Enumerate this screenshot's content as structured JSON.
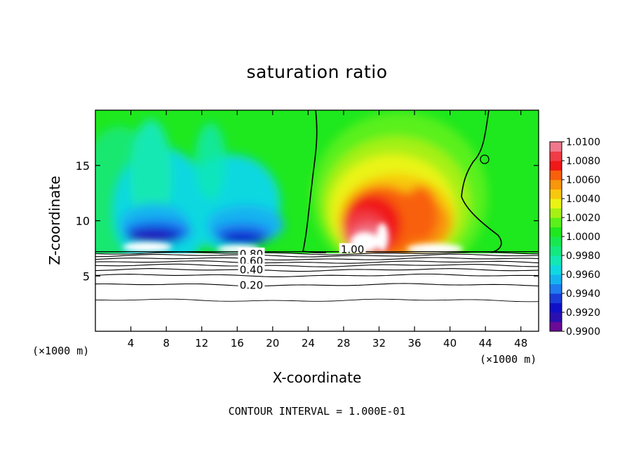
{
  "chart_data": {
    "type": "heatmap",
    "title": "saturation ratio",
    "xlabel": "X-coordinate",
    "ylabel": "Z-coordinate",
    "x_unit": "(×1000 m)",
    "footer": "CONTOUR INTERVAL = 1.000E-01",
    "xlim": [
      0,
      50
    ],
    "ylim": [
      0,
      20
    ],
    "x_ticks": [
      4,
      8,
      12,
      16,
      20,
      24,
      28,
      32,
      36,
      40,
      44,
      48
    ],
    "y_ticks": [
      5,
      10,
      15
    ],
    "x_tick_labels": [
      "4",
      "8",
      "12",
      "16",
      "20",
      "24",
      "28",
      "32",
      "36",
      "40",
      "44",
      "48"
    ],
    "y_tick_labels": [
      "5",
      "10",
      "15"
    ],
    "colorbar": {
      "levels": [
        0.99,
        0.991,
        0.992,
        0.993,
        0.994,
        0.995,
        0.996,
        0.997,
        0.998,
        0.999,
        1.0,
        1.001,
        1.002,
        1.003,
        1.004,
        1.005,
        1.006,
        1.007,
        1.008,
        1.009,
        1.01
      ],
      "labels": [
        "1.0100",
        "1.0080",
        "1.0060",
        "1.0040",
        "1.0020",
        "1.0000",
        "0.9980",
        "0.9960",
        "0.9940",
        "0.9920",
        "0.9900"
      ],
      "colors": [
        "#6a0a96",
        "#2a10b0",
        "#1010c8",
        "#1a3cd8",
        "#1e7cf0",
        "#14b4f0",
        "#10d8e0",
        "#12e8b4",
        "#14e880",
        "#18e850",
        "#1ee81e",
        "#5af01a",
        "#a6f014",
        "#eaf412",
        "#f8c80e",
        "#f8960c",
        "#f8600c",
        "#f01818",
        "#f03c46",
        "#f0788c"
      ]
    },
    "contour_labels": [
      {
        "text": "1.00",
        "x": 29.0,
        "z": 7.4
      },
      {
        "text": "0.80",
        "x": 17.6,
        "z": 7.0
      },
      {
        "text": "0.60",
        "x": 17.6,
        "z": 6.35
      },
      {
        "text": "0.40",
        "x": 17.6,
        "z": 5.55
      },
      {
        "text": "0.20",
        "x": 17.6,
        "z": 4.15
      }
    ],
    "lower_contours_z": [
      7.05,
      6.85,
      6.55,
      6.25,
      5.95,
      5.55,
      5.05,
      4.2,
      2.8
    ],
    "cloud_base_z": 7.2
  }
}
